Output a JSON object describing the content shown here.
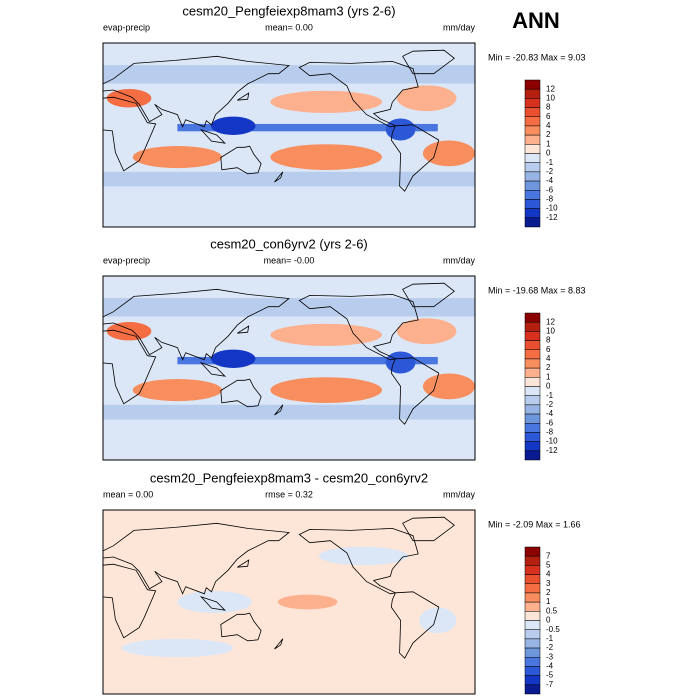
{
  "title": "ANN",
  "panels": [
    {
      "title": "cesm20_Pengfeiexp8mam3 (yrs 2-6)",
      "left_label": "evap-precip",
      "center_label": "mean=  0.00",
      "right_label": "mm/day",
      "minmax": "Min = -20.83 Max =  9.03",
      "colorbar": {
        "labels": [
          "12",
          "10",
          "8",
          "6",
          "4",
          "2",
          "1",
          "0",
          "-1",
          "-2",
          "-4",
          "-6",
          "-8",
          "-10",
          "-12"
        ],
        "colors": [
          "#8b0000",
          "#b3200f",
          "#d7301f",
          "#e8502f",
          "#f46d43",
          "#f88e5d",
          "#fcb08d",
          "#fde6d8",
          "#dbe6f6",
          "#b8cdee",
          "#97b4e5",
          "#6e96db",
          "#4a76e0",
          "#2c58d8",
          "#1336c4",
          "#0a1a8f"
        ]
      }
    },
    {
      "title": "cesm20_con6yrv2 (yrs 2-6)",
      "left_label": "evap-precip",
      "center_label": "mean=  -0.00",
      "right_label": "mm/day",
      "minmax": "Min = -19.68 Max =  8.83",
      "colorbar": {
        "labels": [
          "12",
          "10",
          "8",
          "6",
          "4",
          "2",
          "1",
          "0",
          "-1",
          "-2",
          "-4",
          "-6",
          "-8",
          "-10",
          "-12"
        ],
        "colors": [
          "#8b0000",
          "#b3200f",
          "#d7301f",
          "#e8502f",
          "#f46d43",
          "#f88e5d",
          "#fcb08d",
          "#fde6d8",
          "#dbe6f6",
          "#b8cdee",
          "#97b4e5",
          "#6e96db",
          "#4a76e0",
          "#2c58d8",
          "#1336c4",
          "#0a1a8f"
        ]
      }
    },
    {
      "title": "cesm20_Pengfeiexp8mam3 - cesm20_con6yrv2",
      "left_label": "mean =  0.00",
      "center_label": "rmse =  0.32",
      "right_label": "mm/day",
      "minmax": "Min = -2.09 Max =  1.66",
      "colorbar": {
        "labels": [
          "7",
          "5",
          "4",
          "3",
          "2",
          "1",
          "0.5",
          "0",
          "-0.5",
          "-1",
          "-2",
          "-3",
          "-4",
          "-5",
          "-7"
        ],
        "colors": [
          "#8b0000",
          "#b3200f",
          "#d7301f",
          "#e8502f",
          "#f46d43",
          "#f88e5d",
          "#fcb08d",
          "#fde6d8",
          "#dbe6f6",
          "#b8cdee",
          "#97b4e5",
          "#6e96db",
          "#4a76e0",
          "#2c58d8",
          "#1336c4",
          "#0a1a8f"
        ]
      }
    }
  ]
}
